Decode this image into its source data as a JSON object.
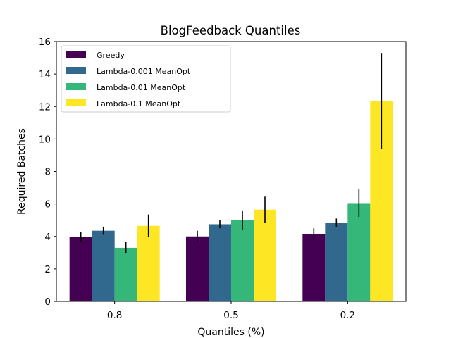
{
  "chart_data": {
    "type": "bar",
    "title": "BlogFeedback Quantiles",
    "xlabel": "Quantiles (%)",
    "ylabel": "Required Batches",
    "categories": [
      "0.8",
      "0.5",
      "0.2"
    ],
    "ylim": [
      0,
      16
    ],
    "yticks": [
      0,
      2,
      4,
      6,
      8,
      10,
      12,
      14,
      16
    ],
    "grid": false,
    "legend_position": "top-left",
    "series": [
      {
        "name": "Greedy",
        "color": "#440154",
        "values": [
          3.95,
          4.0,
          4.15
        ],
        "errors": [
          0.3,
          0.35,
          0.35
        ]
      },
      {
        "name": "Lambda-0.001 MeanOpt",
        "color": "#31688e",
        "values": [
          4.35,
          4.75,
          4.85
        ],
        "errors": [
          0.25,
          0.25,
          0.25
        ]
      },
      {
        "name": "Lambda-0.01 MeanOpt",
        "color": "#35b779",
        "values": [
          3.3,
          5.0,
          6.05
        ],
        "errors": [
          0.35,
          0.6,
          0.85
        ]
      },
      {
        "name": "Lambda-0.1 MeanOpt",
        "color": "#fde725",
        "values": [
          4.65,
          5.65,
          12.35
        ],
        "errors": [
          0.7,
          0.8,
          2.95
        ]
      }
    ]
  }
}
